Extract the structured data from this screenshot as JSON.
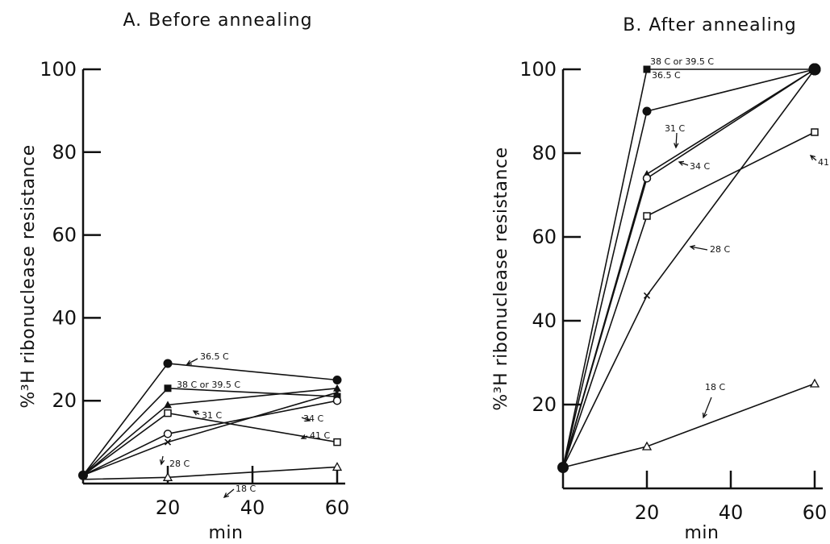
{
  "chart_data": [
    {
      "type": "line",
      "title": "A. Before annealing",
      "xlabel": "min",
      "ylabel": "%³H ribonuclease resistance",
      "xlim": [
        0,
        60
      ],
      "ylim": [
        0,
        100
      ],
      "xticks": [
        20,
        40,
        60
      ],
      "yticks": [
        20,
        40,
        60,
        80,
        100
      ],
      "grid": false,
      "series": [
        {
          "name": "36.5 C",
          "marker": "circle-filled",
          "x": [
            0,
            20,
            60
          ],
          "y": [
            2,
            29,
            25
          ]
        },
        {
          "name": "38 C or 39.5 C",
          "marker": "square-filled",
          "x": [
            0,
            20,
            60
          ],
          "y": [
            2,
            23,
            21
          ]
        },
        {
          "name": "31 C",
          "marker": "triangle-filled",
          "x": [
            0,
            20,
            60
          ],
          "y": [
            2,
            19,
            23
          ]
        },
        {
          "name": "41 C",
          "marker": "square-open",
          "x": [
            0,
            20,
            60
          ],
          "y": [
            2,
            17,
            10
          ]
        },
        {
          "name": "34 C",
          "marker": "circle-open",
          "x": [
            0,
            20,
            60
          ],
          "y": [
            2,
            12,
            20
          ]
        },
        {
          "name": "28 C",
          "marker": "cross",
          "x": [
            0,
            20,
            60
          ],
          "y": [
            2,
            10,
            22
          ]
        },
        {
          "name": "18 C",
          "marker": "triangle-open",
          "x": [
            0,
            20,
            60
          ],
          "y": [
            1,
            1.5,
            4
          ]
        }
      ],
      "annotations": [
        {
          "text": "36.5 C",
          "series": "36.5 C"
        },
        {
          "text": "38 C or 39.5 C",
          "series": "38 C or 39.5 C"
        },
        {
          "text": "31 C",
          "series": "31 C"
        },
        {
          "text": "34 C",
          "series": "34 C"
        },
        {
          "text": "41 C",
          "series": "41 C"
        },
        {
          "text": "28 C",
          "series": "28 C"
        },
        {
          "text": "18 C",
          "series": "18 C"
        }
      ]
    },
    {
      "type": "line",
      "title": "B. After annealing",
      "xlabel": "min",
      "ylabel": "%³H ribonuclease resistance",
      "xlim": [
        0,
        60
      ],
      "ylim": [
        0,
        100
      ],
      "xticks": [
        20,
        40,
        60
      ],
      "yticks": [
        20,
        40,
        60,
        80,
        100
      ],
      "grid": false,
      "series": [
        {
          "name": "38 C or 39.5 C",
          "marker": "square-filled",
          "x": [
            0,
            20,
            60
          ],
          "y": [
            5,
            100,
            100
          ]
        },
        {
          "name": "36.5 C",
          "marker": "circle-filled",
          "x": [
            0,
            20,
            60
          ],
          "y": [
            5,
            90,
            100
          ]
        },
        {
          "name": "31 C",
          "marker": "triangle-filled",
          "x": [
            0,
            20,
            60
          ],
          "y": [
            5,
            75,
            100
          ]
        },
        {
          "name": "34 C",
          "marker": "circle-open",
          "x": [
            0,
            20,
            60
          ],
          "y": [
            5,
            74,
            100
          ]
        },
        {
          "name": "41 C",
          "marker": "square-open",
          "x": [
            0,
            20,
            60
          ],
          "y": [
            5,
            65,
            85
          ]
        },
        {
          "name": "28 C",
          "marker": "cross",
          "x": [
            0,
            20,
            60
          ],
          "y": [
            5,
            46,
            100
          ]
        },
        {
          "name": "18 C",
          "marker": "triangle-open",
          "x": [
            0,
            20,
            60
          ],
          "y": [
            5,
            10,
            25
          ]
        }
      ],
      "annotations": [
        {
          "text": "38 C or 39.5 C",
          "series": "38 C or 39.5 C"
        },
        {
          "text": "36.5 C",
          "series": "36.5 C"
        },
        {
          "text": "31 C",
          "series": "31 C"
        },
        {
          "text": "34 C",
          "series": "34 C"
        },
        {
          "text": "41 C",
          "series": "41 C"
        },
        {
          "text": "28 C",
          "series": "28 C"
        },
        {
          "text": "18 C",
          "series": "18 C"
        }
      ]
    }
  ]
}
